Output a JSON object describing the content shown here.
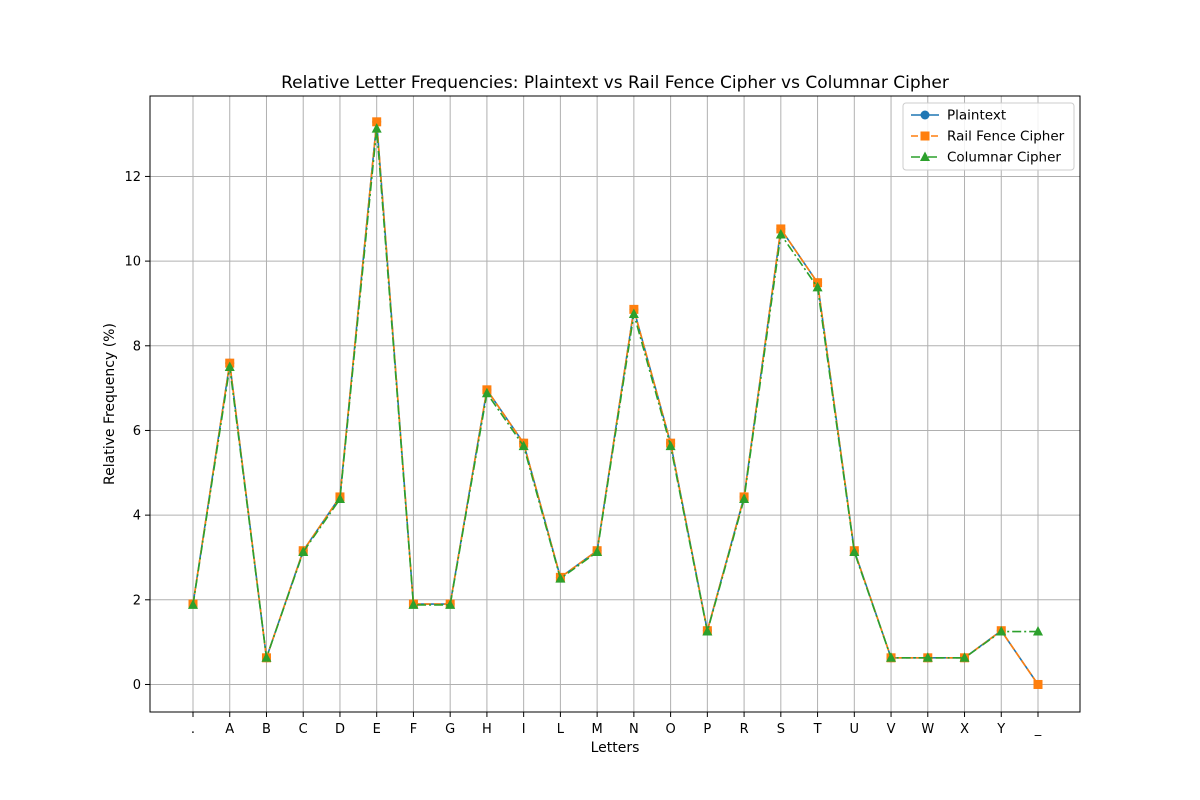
{
  "chart_data": {
    "type": "line",
    "title": "Relative Letter Frequencies: Plaintext vs Rail Fence Cipher vs Columnar Cipher",
    "xlabel": "Letters",
    "ylabel": "Relative Frequency (%)",
    "categories": [
      ".",
      "A",
      "B",
      "C",
      "D",
      "E",
      "F",
      "G",
      "H",
      "I",
      "L",
      "M",
      "N",
      "O",
      "P",
      "R",
      "S",
      "T",
      "U",
      "V",
      "W",
      "X",
      "Y",
      "_"
    ],
    "ylim": [
      -0.65,
      13.9
    ],
    "yticks": [
      0,
      2,
      4,
      6,
      8,
      10,
      12
    ],
    "grid": true,
    "legend_position": "top-right",
    "series": [
      {
        "name": "Plaintext",
        "color": "#1f77b4",
        "marker": "circle",
        "linestyle": "solid",
        "values": [
          1.9,
          7.59,
          0.63,
          3.16,
          4.43,
          13.29,
          1.9,
          1.9,
          6.96,
          5.7,
          2.53,
          3.16,
          8.86,
          5.7,
          1.27,
          4.43,
          10.76,
          9.49,
          3.16,
          0.63,
          0.63,
          0.63,
          1.27,
          0.0
        ]
      },
      {
        "name": "Rail Fence Cipher",
        "color": "#ff7f0e",
        "marker": "square",
        "linestyle": "dashed",
        "values": [
          1.9,
          7.59,
          0.63,
          3.16,
          4.43,
          13.29,
          1.9,
          1.9,
          6.96,
          5.7,
          2.53,
          3.16,
          8.86,
          5.7,
          1.27,
          4.43,
          10.76,
          9.49,
          3.16,
          0.63,
          0.63,
          0.63,
          1.27,
          0.0
        ]
      },
      {
        "name": "Columnar Cipher",
        "color": "#2ca02c",
        "marker": "triangle",
        "linestyle": "dashdot",
        "values": [
          1.88,
          7.5,
          0.63,
          3.13,
          4.38,
          13.13,
          1.88,
          1.88,
          6.88,
          5.63,
          2.5,
          3.13,
          8.75,
          5.63,
          1.25,
          4.38,
          10.63,
          9.38,
          3.13,
          0.63,
          0.63,
          0.63,
          1.25,
          1.25
        ]
      }
    ]
  }
}
